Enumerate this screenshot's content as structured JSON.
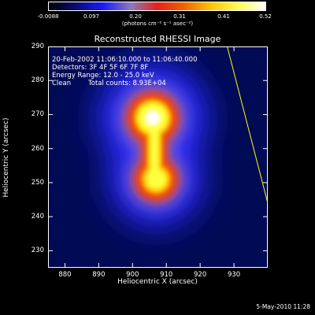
{
  "colorbar": {
    "ticks": [
      "-0.0088",
      "0.097",
      "0.20",
      "0.31",
      "0.41",
      "0.52"
    ],
    "units": "(photons cm⁻² s⁻¹ asec⁻²)"
  },
  "colors": {
    "background": "#000000",
    "axes": "#ffffff",
    "limb_line": "#ffff00"
  },
  "chart_data": {
    "type": "heatmap",
    "title": "Reconstructed RHESSI Image",
    "xlabel": "Heliocentric X (arcsec)",
    "ylabel": "Heliocentric Y (arcsec)",
    "xlim": [
      875,
      940
    ],
    "ylim": [
      225,
      290
    ],
    "xticks": [
      880,
      890,
      900,
      910,
      920,
      930
    ],
    "yticks": [
      230,
      240,
      250,
      260,
      270,
      280,
      290
    ],
    "value_range": [
      -0.0088,
      0.52
    ],
    "sources": [
      {
        "x": 906,
        "y": 269,
        "peak": 0.52
      },
      {
        "x": 907,
        "y": 251,
        "peak": 0.43
      }
    ],
    "limb_line": {
      "x1": 928,
      "y1": 290,
      "x2": 940,
      "y2": 244
    },
    "annotations": {
      "time_range": "20-Feb-2002 11:06:10.000 to 11:06:40.000",
      "detectors": "Detectors: 3F 4F 5F 6F 7F 8F",
      "energy": "Energy Range: 12.0 - 25.0 keV",
      "method": "Clean",
      "counts": "Total counts: 8.93E+04"
    }
  },
  "footer": {
    "datestamp": "5-May-2010 11:28"
  }
}
